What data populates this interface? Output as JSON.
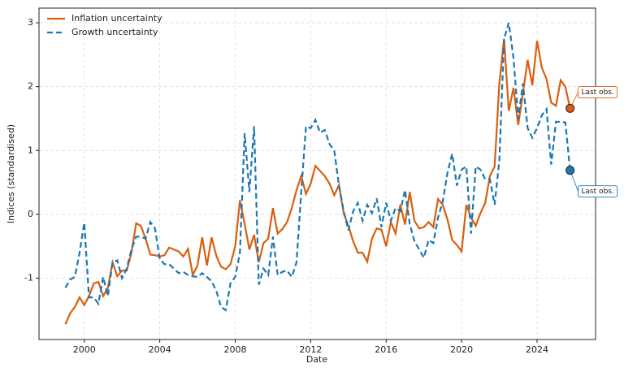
{
  "chart_data": {
    "type": "line",
    "xlabel": "Date",
    "ylabel": "Indices (standardised)",
    "x": [
      1999,
      1999.25,
      1999.5,
      1999.75,
      2000,
      2000.25,
      2000.5,
      2000.75,
      2001,
      2001.25,
      2001.5,
      2001.75,
      2002,
      2002.25,
      2002.5,
      2002.75,
      2003,
      2003.25,
      2003.5,
      2003.75,
      2004,
      2004.25,
      2004.5,
      2004.75,
      2005,
      2005.25,
      2005.5,
      2005.75,
      2006,
      2006.25,
      2006.5,
      2006.75,
      2007,
      2007.25,
      2007.5,
      2007.75,
      2008,
      2008.25,
      2008.5,
      2008.75,
      2009,
      2009.25,
      2009.5,
      2009.75,
      2010,
      2010.25,
      2010.5,
      2010.75,
      2011,
      2011.25,
      2011.5,
      2011.75,
      2012,
      2012.25,
      2012.5,
      2012.75,
      2013,
      2013.25,
      2013.5,
      2013.75,
      2014,
      2014.25,
      2014.5,
      2014.75,
      2015,
      2015.25,
      2015.5,
      2015.75,
      2016,
      2016.25,
      2016.5,
      2016.75,
      2017,
      2017.25,
      2017.5,
      2017.75,
      2018,
      2018.25,
      2018.5,
      2018.75,
      2019,
      2019.25,
      2019.5,
      2019.75,
      2020,
      2020.25,
      2020.5,
      2020.75,
      2021,
      2021.25,
      2021.5,
      2021.75,
      2022,
      2022.25,
      2022.5,
      2022.75,
      2023,
      2023.25,
      2023.5,
      2023.75,
      2024,
      2024.25,
      2024.5,
      2024.75,
      2025,
      2025.25,
      2025.5,
      2025.75
    ],
    "series": [
      {
        "name": "Inflation uncertainty",
        "color": "#d95f0e",
        "linestyle": "solid",
        "annotation": "Last obs.",
        "values": [
          -1.72,
          -1.55,
          -1.45,
          -1.3,
          -1.42,
          -1.28,
          -1.08,
          -1.06,
          -1.28,
          -1.15,
          -0.75,
          -0.97,
          -0.88,
          -0.88,
          -0.6,
          -0.14,
          -0.18,
          -0.38,
          -0.63,
          -0.64,
          -0.66,
          -0.64,
          -0.52,
          -0.55,
          -0.58,
          -0.66,
          -0.54,
          -0.95,
          -0.8,
          -0.36,
          -0.8,
          -0.36,
          -0.65,
          -0.82,
          -0.86,
          -0.78,
          -0.5,
          0.22,
          -0.15,
          -0.55,
          -0.32,
          -0.75,
          -0.45,
          -0.38,
          0.1,
          -0.3,
          -0.23,
          -0.12,
          0.1,
          0.38,
          0.6,
          0.32,
          0.48,
          0.76,
          0.68,
          0.6,
          0.48,
          0.3,
          0.46,
          0.02,
          -0.18,
          -0.42,
          -0.6,
          -0.6,
          -0.74,
          -0.38,
          -0.22,
          -0.24,
          -0.5,
          -0.12,
          -0.3,
          0.15,
          -0.16,
          0.35,
          -0.1,
          -0.22,
          -0.2,
          -0.12,
          -0.2,
          0.24,
          0.15,
          -0.08,
          -0.4,
          -0.48,
          -0.58,
          0.15,
          -0.05,
          -0.18,
          0.02,
          0.18,
          0.6,
          0.75,
          2.05,
          2.75,
          1.62,
          1.98,
          1.4,
          1.9,
          2.42,
          2.02,
          2.72,
          2.3,
          2.12,
          1.75,
          1.7,
          2.1,
          2.0,
          1.66
        ]
      },
      {
        "name": "Growth uncertainty",
        "color": "#1a78b4",
        "linestyle": "dashed",
        "annotation": "Last obs.",
        "values": [
          -1.15,
          -1.02,
          -0.98,
          -0.6,
          -0.13,
          -1.3,
          -1.3,
          -1.4,
          -0.98,
          -1.28,
          -0.75,
          -0.72,
          -1.0,
          -0.85,
          -0.55,
          -0.35,
          -0.35,
          -0.38,
          -0.12,
          -0.22,
          -0.7,
          -0.78,
          -0.78,
          -0.85,
          -0.92,
          -0.9,
          -0.95,
          -0.97,
          -0.98,
          -0.92,
          -0.98,
          -1.05,
          -1.2,
          -1.45,
          -1.5,
          -1.08,
          -0.98,
          -0.6,
          1.27,
          0.35,
          1.38,
          -1.1,
          -0.85,
          -0.95,
          -0.35,
          -0.95,
          -0.9,
          -0.88,
          -0.98,
          -0.75,
          0.35,
          1.38,
          1.35,
          1.48,
          1.28,
          1.32,
          1.1,
          1.0,
          0.45,
          0.05,
          -0.25,
          0.05,
          0.18,
          -0.1,
          0.15,
          0.02,
          0.25,
          -0.2,
          0.18,
          -0.1,
          0.1,
          0.05,
          0.38,
          -0.15,
          -0.42,
          -0.55,
          -0.68,
          -0.4,
          -0.45,
          -0.05,
          0.2,
          0.65,
          0.95,
          0.45,
          0.7,
          0.75,
          -0.3,
          0.75,
          0.7,
          0.55,
          0.55,
          0.15,
          0.85,
          2.75,
          3.0,
          2.45,
          1.5,
          2.05,
          1.35,
          1.2,
          1.35,
          1.55,
          1.65,
          0.78,
          1.45,
          1.45,
          1.44,
          0.69
        ]
      }
    ],
    "xlim": [
      1997.6,
      2027.1
    ],
    "xticks": [
      2000,
      2004,
      2008,
      2012,
      2016,
      2020,
      2024
    ],
    "ylim": [
      -1.96,
      3.23
    ],
    "yticks": [
      -1,
      0,
      1,
      2,
      3
    ],
    "grid": true,
    "legend": "upper left"
  }
}
